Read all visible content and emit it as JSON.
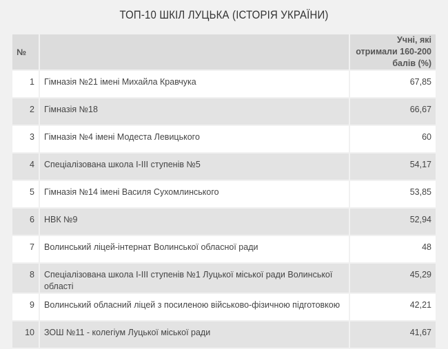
{
  "title": "ТОП-10 ШКІЛ ЛУЦЬКА (ІСТОРІЯ УКРАЇНИ)",
  "table": {
    "headers": {
      "number": "№",
      "name": "",
      "value": "Учні, які отримали 160-200 балів (%)"
    },
    "rows": [
      {
        "n": "1",
        "name": "Гімназія №21 імені Михайла Кравчука",
        "value": "67,85"
      },
      {
        "n": "2",
        "name": "Гімназія №18",
        "value": "66,67"
      },
      {
        "n": "3",
        "name": "Гімназія №4 імені Модеста Левицького",
        "value": "60"
      },
      {
        "n": "4",
        "name": "Спеціалізована школа І-ІІІ ступенів №5",
        "value": "54,17"
      },
      {
        "n": "5",
        "name": "Гімназія №14 імені Василя Сухомлинського",
        "value": "53,85"
      },
      {
        "n": "6",
        "name": "НВК №9",
        "value": "52,94"
      },
      {
        "n": "7",
        "name": "Волинський ліцей-інтернат Волинської обласної ради",
        "value": "48"
      },
      {
        "n": "8",
        "name": "Спеціалізована школа І-ІІІ ступенів №1 Луцької міської ради Волинської області",
        "value": "45,29"
      },
      {
        "n": "9",
        "name": "Волинський обласний ліцей з посиленою військово-фізичною підготовкою",
        "value": "42,21"
      },
      {
        "n": "10",
        "name": "ЗОШ №11 - колегіум Луцької міської ради",
        "value": "41,67"
      }
    ]
  }
}
